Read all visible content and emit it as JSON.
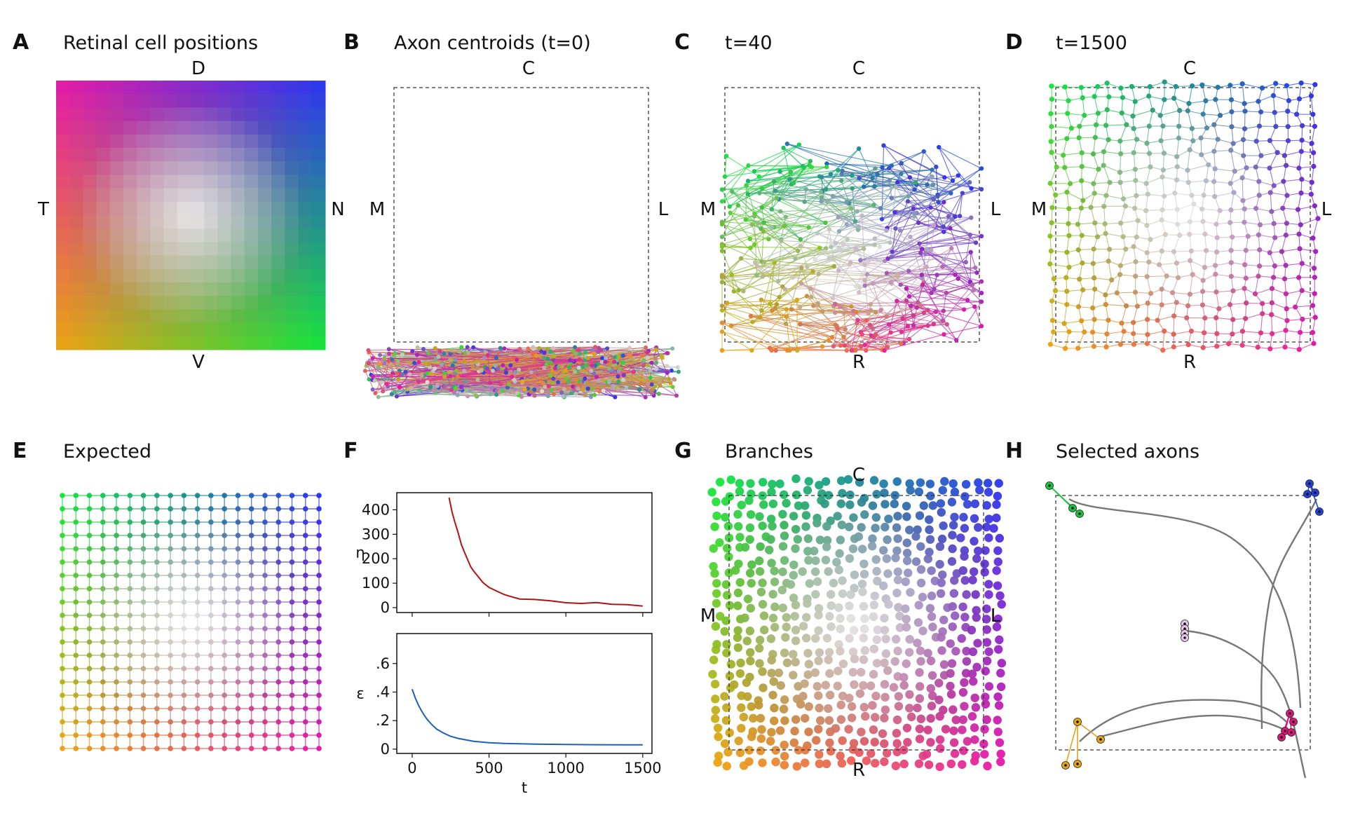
{
  "panels": {
    "A": {
      "letter": "A",
      "title": "Retinal cell positions",
      "top": "D",
      "bottom": "V",
      "left": "T",
      "right": "N"
    },
    "B": {
      "letter": "B",
      "title": "Axon centroids (t=0)",
      "top": "C",
      "left": "M",
      "right": "L"
    },
    "C": {
      "letter": "C",
      "title": "t=40",
      "top": "C",
      "bottom": "R",
      "left": "M",
      "right": "L"
    },
    "D": {
      "letter": "D",
      "title": "t=1500",
      "top": "C",
      "bottom": "R",
      "left": "M",
      "right": "L"
    },
    "E": {
      "letter": "E",
      "title": "Expected"
    },
    "F": {
      "letter": "F",
      "title": ""
    },
    "G": {
      "letter": "G",
      "title": "Branches",
      "top": "C",
      "bottom": "R",
      "left": "M",
      "right": "L"
    },
    "H": {
      "letter": "H",
      "title": "Selected axons"
    }
  },
  "colors": {
    "corner_dorsal_temporal": "#e619a8",
    "corner_dorsal_nasal": "#2a36f0",
    "corner_ventral_temporal": "#eda312",
    "corner_ventral_nasal": "#14e63c",
    "center": "#f2f2f2",
    "eta_line": "#b31212",
    "epsilon_line": "#1f5fb5",
    "trajectory": "#777777"
  },
  "chart_data": [
    {
      "panel": "F-top",
      "type": "line",
      "xlabel": "",
      "ylabel": "η",
      "xlim": [
        -100,
        1560
      ],
      "ylim": [
        -20,
        470
      ],
      "yticks": [
        0,
        100,
        200,
        300,
        400
      ],
      "ytick_labels": [
        "0",
        "100",
        "200",
        "300",
        "400"
      ],
      "xticks": [
        0,
        500,
        1000,
        1500
      ],
      "series": [
        {
          "values": [
            {
              "x": 240,
              "y": 450
            },
            {
              "x": 260,
              "y": 390
            },
            {
              "x": 280,
              "y": 345
            },
            {
              "x": 300,
              "y": 300
            },
            {
              "x": 320,
              "y": 262
            },
            {
              "x": 340,
              "y": 225
            },
            {
              "x": 360,
              "y": 195
            },
            {
              "x": 380,
              "y": 170
            },
            {
              "x": 400,
              "y": 150
            },
            {
              "x": 430,
              "y": 125
            },
            {
              "x": 460,
              "y": 105
            },
            {
              "x": 500,
              "y": 85
            },
            {
              "x": 550,
              "y": 68
            },
            {
              "x": 600,
              "y": 55
            },
            {
              "x": 650,
              "y": 45
            },
            {
              "x": 700,
              "y": 38
            },
            {
              "x": 800,
              "y": 31
            },
            {
              "x": 900,
              "y": 27
            },
            {
              "x": 1000,
              "y": 22
            },
            {
              "x": 1100,
              "y": 19
            },
            {
              "x": 1200,
              "y": 17
            },
            {
              "x": 1300,
              "y": 15
            },
            {
              "x": 1400,
              "y": 12
            },
            {
              "x": 1500,
              "y": 10
            }
          ]
        }
      ]
    },
    {
      "panel": "F-bottom",
      "type": "line",
      "xlabel": "t",
      "ylabel": "ε",
      "xlim": [
        -100,
        1560
      ],
      "ylim": [
        -0.03,
        0.81
      ],
      "yticks": [
        0,
        0.2,
        0.4,
        0.6
      ],
      "ytick_labels": [
        "0",
        ".2",
        ".4",
        ".6"
      ],
      "xticks": [
        0,
        500,
        1000,
        1500
      ],
      "xtick_labels": [
        "0",
        "500",
        "1000",
        "1500"
      ],
      "series": [
        {
          "values": [
            {
              "x": 0,
              "y": 0.42
            },
            {
              "x": 20,
              "y": 0.36
            },
            {
              "x": 40,
              "y": 0.31
            },
            {
              "x": 60,
              "y": 0.27
            },
            {
              "x": 80,
              "y": 0.235
            },
            {
              "x": 100,
              "y": 0.205
            },
            {
              "x": 130,
              "y": 0.17
            },
            {
              "x": 160,
              "y": 0.14
            },
            {
              "x": 200,
              "y": 0.115
            },
            {
              "x": 250,
              "y": 0.09
            },
            {
              "x": 300,
              "y": 0.075
            },
            {
              "x": 400,
              "y": 0.055
            },
            {
              "x": 500,
              "y": 0.045
            },
            {
              "x": 600,
              "y": 0.04
            },
            {
              "x": 800,
              "y": 0.035
            },
            {
              "x": 1000,
              "y": 0.033
            },
            {
              "x": 1200,
              "y": 0.031
            },
            {
              "x": 1500,
              "y": 0.03
            }
          ]
        }
      ]
    }
  ]
}
